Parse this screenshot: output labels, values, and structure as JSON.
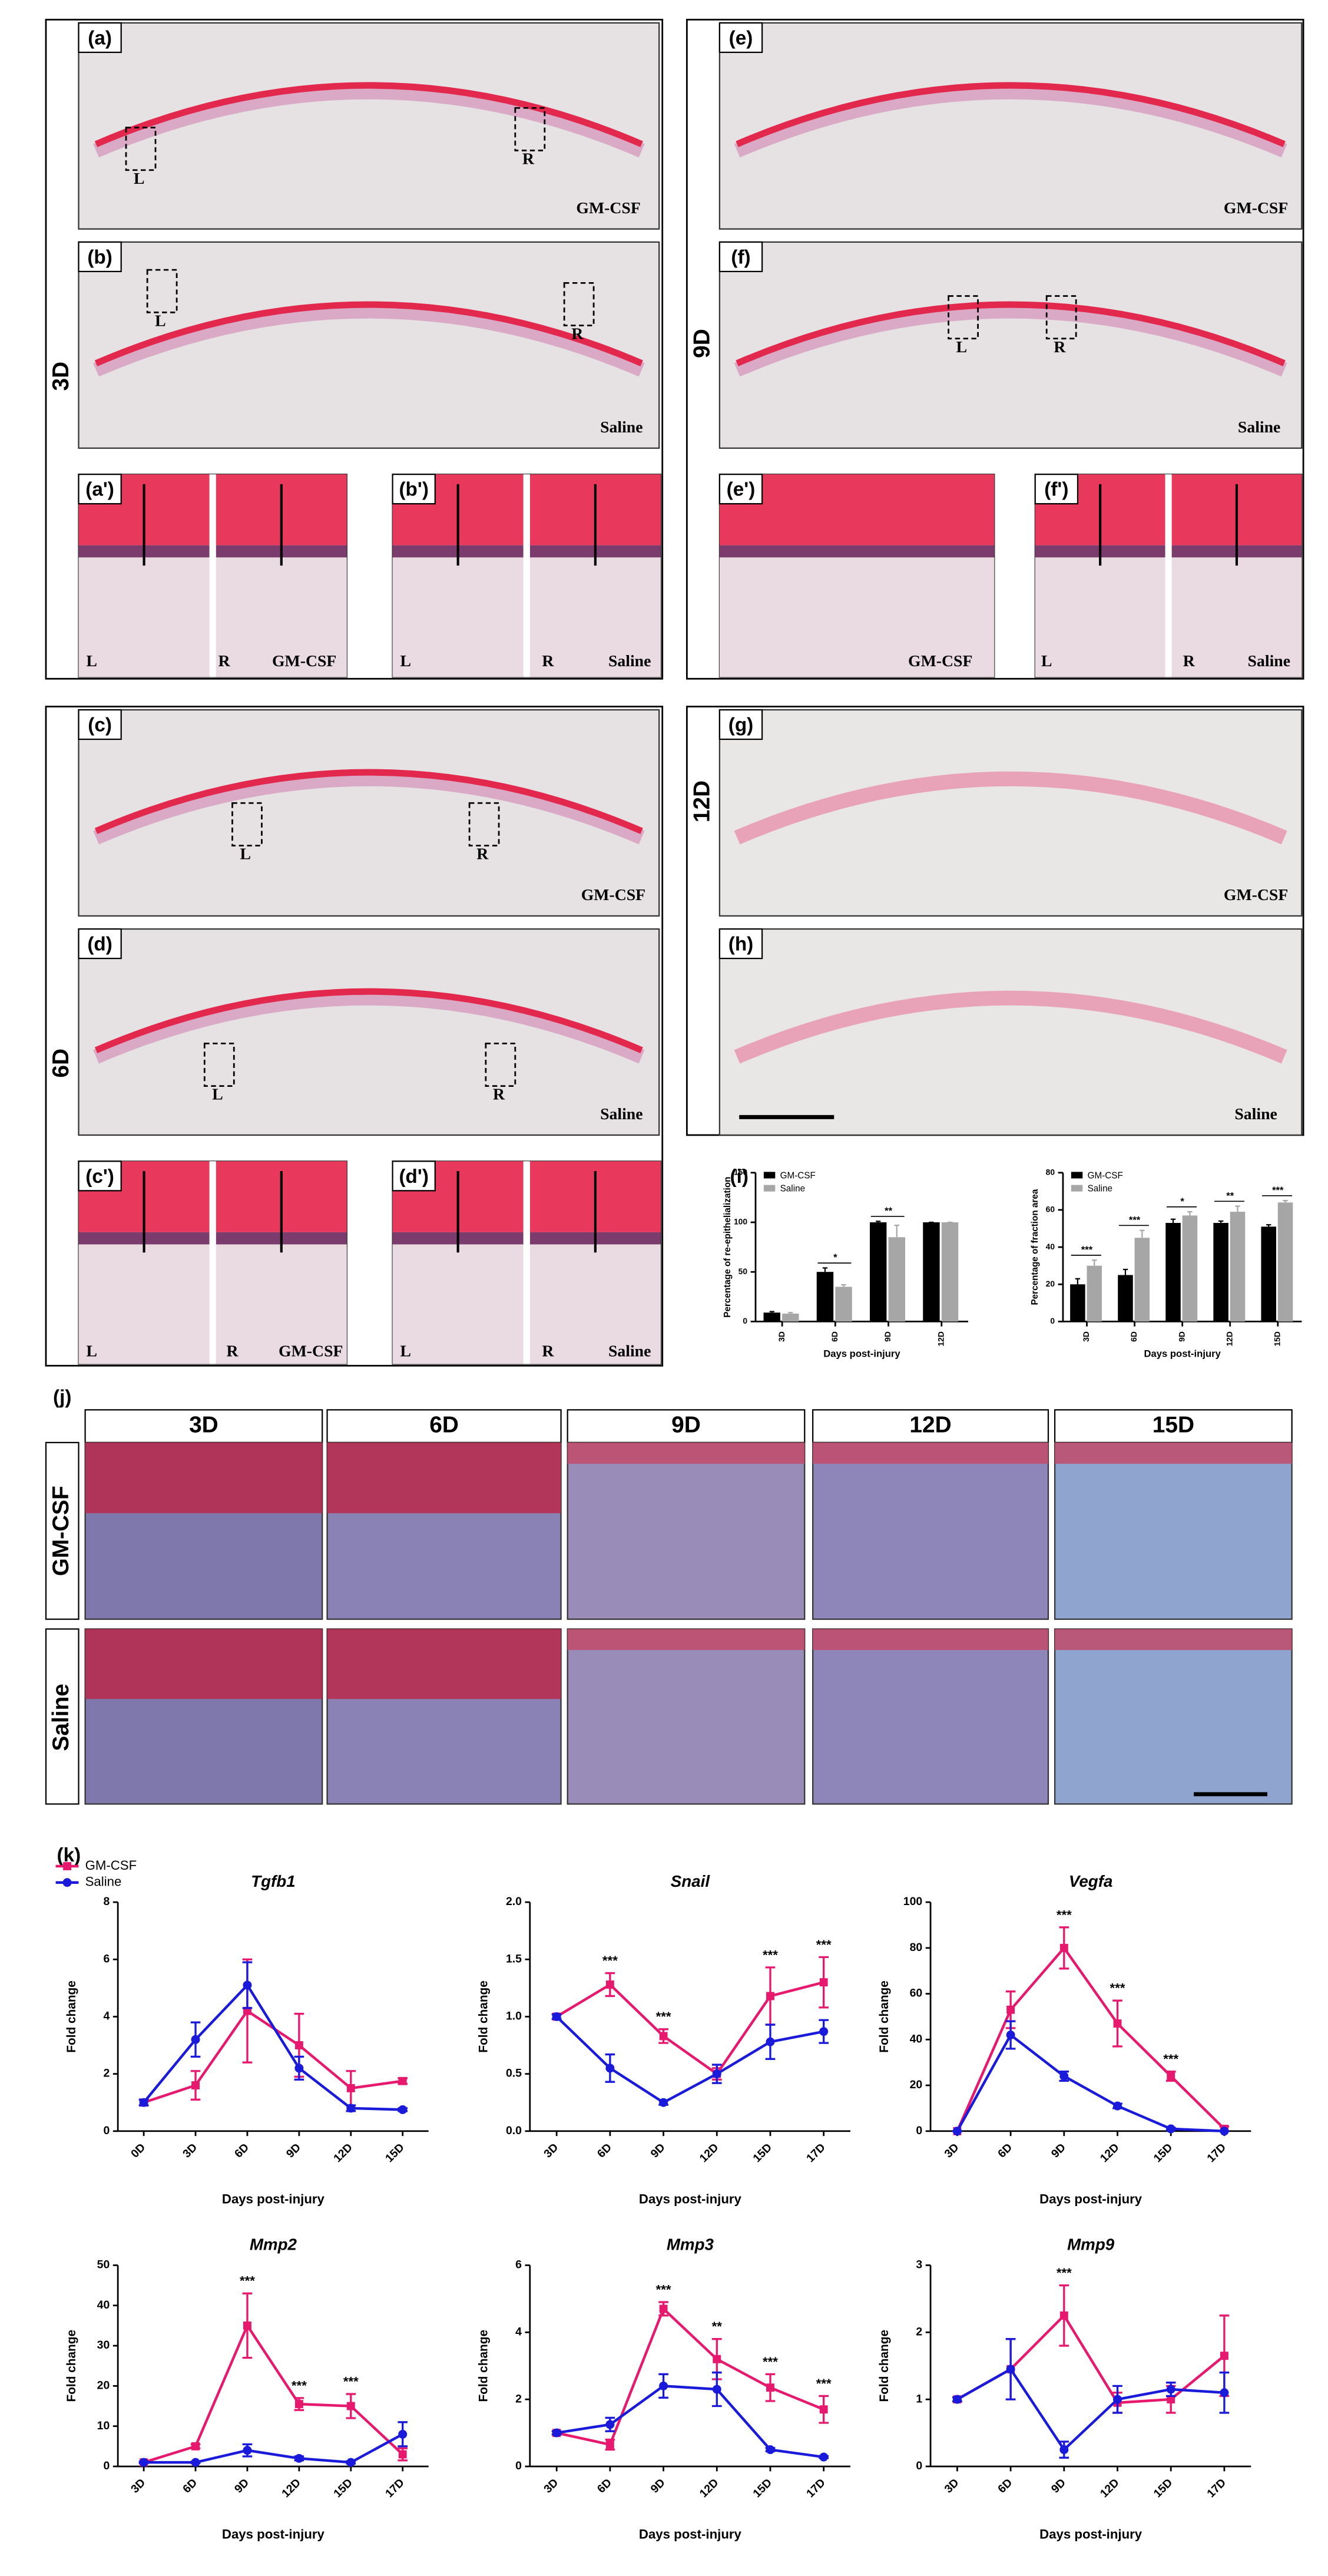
{
  "figure": {
    "side_labels": [
      "3D",
      "9D",
      "6D",
      "12D"
    ],
    "panels": [
      {
        "label": "(a)",
        "tags": [
          "L",
          "R",
          "GM-CSF"
        ]
      },
      {
        "label": "(b)",
        "tags": [
          "L",
          "R",
          "Saline"
        ]
      },
      {
        "label": "(a')",
        "tags": [
          "L",
          "R",
          "GM-CSF"
        ]
      },
      {
        "label": "(b')",
        "tags": [
          "L",
          "R",
          "Saline"
        ]
      },
      {
        "label": "(e)",
        "tags": [
          "GM-CSF"
        ]
      },
      {
        "label": "(f)",
        "tags": [
          "L",
          "R",
          "Saline"
        ]
      },
      {
        "label": "(e')",
        "tags": [
          "GM-CSF"
        ]
      },
      {
        "label": "(f')",
        "tags": [
          "L",
          "R",
          "Saline"
        ]
      },
      {
        "label": "(c)",
        "tags": [
          "L",
          "R",
          "GM-CSF"
        ]
      },
      {
        "label": "(d)",
        "tags": [
          "L",
          "R",
          "Saline"
        ]
      },
      {
        "label": "(c')",
        "tags": [
          "L",
          "R",
          "GM-CSF"
        ]
      },
      {
        "label": "(d')",
        "tags": [
          "L",
          "R",
          "Saline"
        ]
      },
      {
        "label": "(g)",
        "tags": [
          "GM-CSF"
        ]
      },
      {
        "label": "(h)",
        "tags": [
          "Saline"
        ]
      }
    ],
    "chart_label": "(i)",
    "trichrome": {
      "label": "(j)",
      "columns": [
        "3D",
        "6D",
        "9D",
        "12D",
        "15D"
      ],
      "rows": [
        "GM-CSF",
        "Saline"
      ]
    },
    "expression_label": "(k)"
  },
  "chart_data": [
    {
      "type": "bar",
      "ylabel": "Percentage of re-epithelialization",
      "xlabel": "Days post-injury",
      "categories": [
        "3D",
        "6D",
        "9D",
        "12D"
      ],
      "series": [
        {
          "name": "GM-CSF",
          "color": "#000000",
          "values": [
            9,
            50,
            100,
            100
          ],
          "errors": [
            1,
            4,
            1,
            0
          ]
        },
        {
          "name": "Saline",
          "color": "#a6a6a6",
          "values": [
            8,
            35,
            85,
            100
          ],
          "errors": [
            1,
            2,
            12,
            0
          ]
        }
      ],
      "significance": [
        null,
        "*",
        "**",
        null
      ],
      "ylim": [
        0,
        150
      ],
      "yticks": [
        0,
        50,
        100,
        150
      ],
      "legend": "upper left"
    },
    {
      "type": "bar",
      "ylabel": "Percentage of fraction area",
      "xlabel": "Days post-injury",
      "categories": [
        "3D",
        "6D",
        "9D",
        "12D",
        "15D"
      ],
      "series": [
        {
          "name": "GM-CSF",
          "color": "#000000",
          "values": [
            20,
            25,
            53,
            53,
            51
          ],
          "errors": [
            3,
            3,
            2,
            1,
            1
          ]
        },
        {
          "name": "Saline",
          "color": "#a6a6a6",
          "values": [
            30,
            45,
            57,
            59,
            64
          ],
          "errors": [
            3,
            4,
            2,
            3,
            1
          ]
        }
      ],
      "significance": [
        "***",
        "***",
        "*",
        "**",
        "***"
      ],
      "ylim": [
        0,
        80
      ],
      "yticks": [
        0,
        20,
        40,
        60,
        80
      ],
      "legend": "upper left"
    },
    {
      "type": "line",
      "title": "Tgfb1",
      "ylabel": "Fold change",
      "xlabel": "Days post-injury",
      "categories": [
        "0D",
        "3D",
        "6D",
        "9D",
        "12D",
        "15D"
      ],
      "series": [
        {
          "name": "GM-CSF",
          "color": "#e6196e",
          "marker": "square",
          "values": [
            1,
            1.6,
            4.2,
            3.0,
            1.5,
            1.75
          ],
          "errors": [
            0.1,
            0.5,
            1.8,
            1.1,
            0.6,
            0.1
          ]
        },
        {
          "name": "Saline",
          "color": "#1a1adb",
          "marker": "circle",
          "values": [
            1,
            3.2,
            5.1,
            2.2,
            0.8,
            0.75
          ],
          "errors": [
            0.1,
            0.6,
            0.8,
            0.4,
            0.1,
            0.05
          ]
        }
      ],
      "ylim": [
        0,
        8
      ],
      "yticks": [
        0,
        2,
        4,
        6,
        8
      ],
      "legend": "upper left"
    },
    {
      "type": "line",
      "title": "Snail",
      "ylabel": "Fold change",
      "xlabel": "Days post-injury",
      "categories": [
        "3D",
        "6D",
        "9D",
        "12D",
        "15D",
        "17D"
      ],
      "series": [
        {
          "color": "#e6196e",
          "marker": "square",
          "values": [
            1,
            1.28,
            0.83,
            0.5,
            1.18,
            1.3
          ],
          "errors": [
            0.02,
            0.1,
            0.06,
            0.05,
            0.25,
            0.22
          ]
        },
        {
          "color": "#1a1adb",
          "marker": "circle",
          "values": [
            1,
            0.55,
            0.25,
            0.5,
            0.78,
            0.87
          ],
          "errors": [
            0.02,
            0.12,
            0.02,
            0.08,
            0.15,
            0.1
          ]
        }
      ],
      "significance": [
        null,
        "***",
        "***",
        null,
        "***",
        "***"
      ],
      "ylim": [
        0,
        2
      ],
      "yticks": [
        {
          "value": 0,
          "label": "0.0"
        },
        0.5,
        {
          "value": 1,
          "label": "1.0"
        },
        1.5,
        {
          "value": 2,
          "label": "2.0"
        }
      ]
    },
    {
      "type": "line",
      "title": "Vegfa",
      "ylabel": "Fold change",
      "xlabel": "Days post-injury",
      "categories": [
        "3D",
        "6D",
        "9D",
        "12D",
        "15D",
        "17D"
      ],
      "series": [
        {
          "color": "#e6196e",
          "marker": "square",
          "values": [
            0,
            53,
            80,
            47,
            24,
            1
          ],
          "errors": [
            0,
            8,
            9,
            10,
            2,
            1
          ]
        },
        {
          "color": "#1a1adb",
          "marker": "circle",
          "values": [
            0,
            42,
            24,
            11,
            1,
            0
          ],
          "errors": [
            0,
            6,
            2,
            1,
            0.5,
            0
          ]
        }
      ],
      "significance": [
        null,
        null,
        "***",
        "***",
        "***",
        null
      ],
      "ylim": [
        0,
        100
      ],
      "yticks": [
        0,
        20,
        40,
        60,
        80,
        100
      ]
    },
    {
      "type": "line",
      "title": "Mmp2",
      "ylabel": "Fold change",
      "xlabel": "Days post-injury",
      "categories": [
        "3D",
        "6D",
        "9D",
        "12D",
        "15D",
        "17D"
      ],
      "series": [
        {
          "color": "#e6196e",
          "marker": "square",
          "values": [
            1,
            5,
            35,
            15.5,
            15,
            3
          ],
          "errors": [
            0.2,
            0.5,
            8,
            1.5,
            3,
            1.5
          ]
        },
        {
          "color": "#1a1adb",
          "marker": "circle",
          "values": [
            1,
            1,
            4,
            2,
            1,
            8
          ],
          "errors": [
            0.2,
            0.2,
            1.5,
            0.5,
            0.3,
            3
          ]
        }
      ],
      "significance": [
        null,
        null,
        "***",
        "***",
        "***",
        null
      ],
      "ylim": [
        0,
        50
      ],
      "yticks": [
        0,
        10,
        20,
        30,
        40,
        50
      ]
    },
    {
      "type": "line",
      "title": "Mmp3",
      "ylabel": "Fold change",
      "xlabel": "Days post-injury",
      "categories": [
        "3D",
        "6D",
        "9D",
        "12D",
        "15D",
        "17D"
      ],
      "series": [
        {
          "color": "#e6196e",
          "marker": "square",
          "values": [
            1,
            0.65,
            4.7,
            3.2,
            2.35,
            1.7
          ],
          "errors": [
            0.05,
            0.15,
            0.2,
            0.6,
            0.4,
            0.4
          ]
        },
        {
          "color": "#1a1adb",
          "marker": "circle",
          "values": [
            1,
            1.25,
            2.4,
            2.3,
            0.5,
            0.28
          ],
          "errors": [
            0.05,
            0.2,
            0.35,
            0.5,
            0.05,
            0.03
          ]
        }
      ],
      "significance": [
        null,
        null,
        "***",
        "**",
        "***",
        "***"
      ],
      "ylim": [
        0,
        6
      ],
      "yticks": [
        0,
        2,
        4,
        6
      ]
    },
    {
      "type": "line",
      "title": "Mmp9",
      "ylabel": "Fold change",
      "xlabel": "Days post-injury",
      "categories": [
        "3D",
        "6D",
        "9D",
        "12D",
        "15D",
        "17D"
      ],
      "series": [
        {
          "color": "#e6196e",
          "marker": "square",
          "values": [
            1,
            1.45,
            2.25,
            0.95,
            1.0,
            1.65
          ],
          "errors": [
            0.03,
            0.45,
            0.45,
            0.15,
            0.2,
            0.6
          ]
        },
        {
          "color": "#1a1adb",
          "marker": "circle",
          "values": [
            1,
            1.45,
            0.25,
            1.0,
            1.15,
            1.1
          ],
          "errors": [
            0.03,
            0.45,
            0.12,
            0.2,
            0.1,
            0.3
          ]
        }
      ],
      "significance": [
        null,
        null,
        "***",
        null,
        null,
        null
      ],
      "ylim": [
        0,
        3
      ],
      "yticks": [
        0,
        1,
        2,
        3
      ]
    }
  ]
}
